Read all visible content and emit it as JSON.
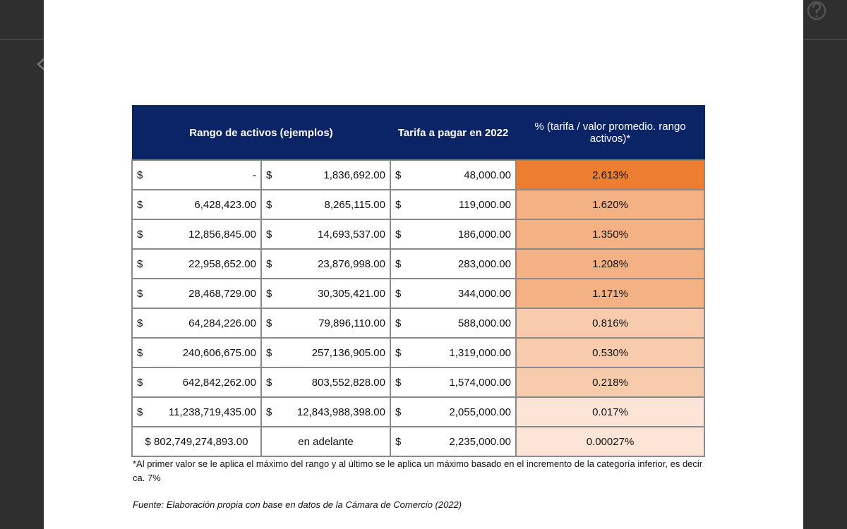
{
  "table": {
    "header": [
      "Rango de activos (ejemplos)",
      "Tarifa a pagar en  2022",
      "% (tarifa / valor promedio. rango activos)*"
    ],
    "rows": [
      {
        "from": [
          "$",
          "-"
        ],
        "to": [
          "$",
          "1,836,692.00"
        ],
        "fee": [
          "$",
          "48,000.00"
        ],
        "pct": "2.613%",
        "color": "#ed7d31"
      },
      {
        "from": [
          "$",
          "6,428,423.00"
        ],
        "to": [
          "$",
          "8,265,115.00"
        ],
        "fee": [
          "$",
          "119,000.00"
        ],
        "pct": "1.620%",
        "color": "#f4b183"
      },
      {
        "from": [
          "$",
          "12,856,845.00"
        ],
        "to": [
          "$",
          "14,693,537.00"
        ],
        "fee": [
          "$",
          "186,000.00"
        ],
        "pct": "1.350%",
        "color": "#f4b183"
      },
      {
        "from": [
          "$",
          "22,958,652.00"
        ],
        "to": [
          "$",
          "23,876,998.00"
        ],
        "fee": [
          "$",
          "283,000.00"
        ],
        "pct": "1.208%",
        "color": "#f4b183"
      },
      {
        "from": [
          "$",
          "28,468,729.00"
        ],
        "to": [
          "$",
          "30,305,421.00"
        ],
        "fee": [
          "$",
          "344,000.00"
        ],
        "pct": "1.171%",
        "color": "#f4b183"
      },
      {
        "from": [
          "$",
          "64,284,226.00"
        ],
        "to": [
          "$",
          "79,896,110.00"
        ],
        "fee": [
          "$",
          "588,000.00"
        ],
        "pct": "0.816%",
        "color": "#f8cbad"
      },
      {
        "from": [
          "$",
          "240,606,675.00"
        ],
        "to": [
          "$",
          "257,136,905.00"
        ],
        "fee": [
          "$",
          "1,319,000.00"
        ],
        "pct": "0.530%",
        "color": "#f8cbad"
      },
      {
        "from": [
          "$",
          "642,842,262.00"
        ],
        "to": [
          "$",
          "803,552,828.00"
        ],
        "fee": [
          "$",
          "1,574,000.00"
        ],
        "pct": "0.218%",
        "color": "#f8cbad"
      },
      {
        "from": [
          "$",
          "11,238,719,435.00"
        ],
        "to": [
          "$",
          "12,843,988,398.00"
        ],
        "fee": [
          "$",
          "2,055,000.00"
        ],
        "pct": "0.017%",
        "color": "#fce4d6"
      },
      {
        "from": [
          "$ 802,749,274,893.00"
        ],
        "to": [
          "en adelante"
        ],
        "fee": [
          "$",
          "2,235,000.00"
        ],
        "pct": "0.00027%",
        "color": "#fce4d6"
      }
    ]
  },
  "footnote": "*Al primer valor se le aplica el máximo del rango y al último se le aplica un máximo basado en el incremento de la categoría inferior, es decir ca. 7%",
  "source": "Fuente: Elaboración propia con base en datos de la Cámara de Comercio (2022)"
}
